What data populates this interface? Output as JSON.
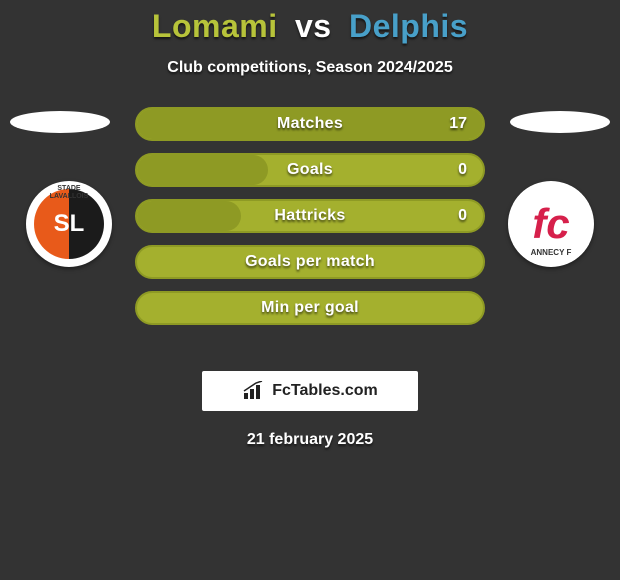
{
  "background_color": "#333333",
  "title": {
    "player1": "Lomami",
    "vs": "vs",
    "player2": "Delphis",
    "color_p1": "#b7c33a",
    "color_vs": "#ffffff",
    "color_p2": "#48a0c9"
  },
  "subtitle": "Club competitions, Season 2024/2025",
  "stats": {
    "bar_bg_color": "#a4b02e",
    "bar_border_color": "#8e9a24",
    "bar_fill_color": "#8e9a24",
    "rows": [
      {
        "label": "Matches",
        "value": "17",
        "fill_pct": 100
      },
      {
        "label": "Goals",
        "value": "0",
        "fill_pct": 38
      },
      {
        "label": "Hattricks",
        "value": "0",
        "fill_pct": 30
      },
      {
        "label": "Goals per match",
        "value": "",
        "fill_pct": 0
      },
      {
        "label": "Min per goal",
        "value": "",
        "fill_pct": 0
      }
    ]
  },
  "clubs": {
    "left": {
      "name": "stade-lavallois",
      "bg": "linear-gradient(90deg,#e85a1a 50%,#1b1b1b 50%)",
      "text": "SL",
      "text_color": "#ffffff",
      "caption_top": "STADE",
      "caption_mid": "LAVALLOIS"
    },
    "right": {
      "name": "annecy-fc",
      "bg": "#ffffff",
      "text": "fc",
      "text_color": "#d6204b",
      "caption": "ANNECY F"
    }
  },
  "brand": "FcTables.com",
  "date": "21 february 2025"
}
